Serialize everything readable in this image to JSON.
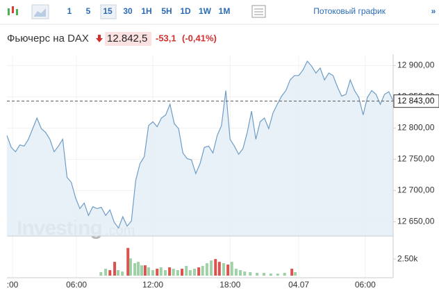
{
  "toolbar": {
    "intervals": [
      "1",
      "5",
      "15",
      "30",
      "1H",
      "5H",
      "1D",
      "1W",
      "1M"
    ],
    "selected": 2,
    "streaming": "Потоковый график",
    "more": "»"
  },
  "watermark": {
    "brand": "Investing",
    "suffix": ".com"
  },
  "chart_data": {
    "type": "line",
    "title": "Фьючерс на DAX",
    "price": "12.842,5",
    "change": "-53,1",
    "change_percent": "(-0,41%)",
    "color": "#6f9cc6",
    "fill": "#e4eef6",
    "x": [
      0,
      1,
      2,
      3,
      4,
      5,
      6,
      7,
      8,
      9,
      10,
      11,
      12,
      13,
      14,
      15,
      16,
      17,
      18,
      19,
      20,
      21,
      22,
      23,
      24,
      25,
      26,
      27,
      28,
      29,
      30,
      31,
      32,
      33,
      34,
      35,
      36,
      37,
      38,
      39,
      40,
      41,
      42,
      43,
      44,
      45,
      46,
      47,
      48,
      49,
      50,
      51,
      52,
      53,
      54,
      55,
      56,
      57,
      58,
      59,
      60,
      61,
      62,
      63,
      64,
      65,
      66,
      67,
      68,
      69,
      70,
      71,
      72,
      73,
      74,
      75,
      76,
      77,
      78,
      79,
      80,
      81,
      82,
      83,
      84,
      85,
      86,
      87,
      88,
      89,
      90
    ],
    "values": [
      12788,
      12769,
      12762,
      12773,
      12771,
      12782,
      12799,
      12816,
      12799,
      12793,
      12782,
      12762,
      12771,
      12782,
      12721,
      12713,
      12688,
      12671,
      12680,
      12660,
      12674,
      12671,
      12673,
      12660,
      12669,
      12649,
      12640,
      12658,
      12643,
      12651,
      12716,
      12743,
      12754,
      12804,
      12810,
      12802,
      12816,
      12821,
      12838,
      12807,
      12799,
      12760,
      12751,
      12749,
      12727,
      12743,
      12769,
      12771,
      12760,
      12788,
      12804,
      12860,
      12782,
      12771,
      12758,
      12767,
      12793,
      12827,
      12782,
      12810,
      12816,
      12799,
      12824,
      12838,
      12851,
      12860,
      12877,
      12884,
      12884,
      12893,
      12907,
      12899,
      12888,
      12896,
      12877,
      12888,
      12884,
      12866,
      12851,
      12854,
      12877,
      12860,
      12849,
      12821,
      12849,
      12860,
      12854,
      12838,
      12854,
      12858,
      12843
    ],
    "xlim": [
      0,
      90
    ],
    "xticks": [
      {
        "value": 1.3,
        "label": ":00"
      },
      {
        "value": 16.2,
        "label": "06:00"
      },
      {
        "value": 34,
        "label": "12:00"
      },
      {
        "value": 52,
        "label": "18:00"
      },
      {
        "value": 68,
        "label": "04.07"
      },
      {
        "value": 83.5,
        "label": "06:00"
      }
    ],
    "ylim": [
      12627,
      12916
    ],
    "yticks": [
      {
        "value": 12900,
        "label": "12 900,00"
      },
      {
        "value": 12850,
        "label": "12 850,00"
      },
      {
        "value": 12800,
        "label": "12 800,00"
      },
      {
        "value": 12750,
        "label": "12 750,00"
      },
      {
        "value": 12700,
        "label": "12 700,00"
      },
      {
        "value": 12650,
        "label": "12 650,00"
      }
    ],
    "last_value": {
      "value": 12843,
      "label": "12 843,00"
    },
    "grid": true,
    "volume": {
      "type": "bar",
      "x": [
        21.9,
        23.0,
        24.0,
        25.1,
        25.9,
        26.9,
        28.2,
        28.8,
        29.8,
        30.6,
        31.4,
        32.2,
        33.0,
        34.0,
        35.0,
        35.9,
        36.9,
        37.9,
        38.8,
        39.8,
        40.8,
        41.8,
        42.7,
        43.7,
        44.7,
        45.6,
        46.6,
        47.6,
        48.6,
        49.5,
        50.5,
        51.5,
        52.4,
        53.4,
        54.4,
        55.4,
        56.7,
        58.3,
        59.9,
        61.5,
        63.1,
        64.7,
        66.4,
        67.2
      ],
      "values": [
        520,
        1040,
        830,
        2080,
        830,
        620,
        4170,
        2600,
        1880,
        2080,
        1560,
        1560,
        1250,
        830,
        1040,
        1250,
        830,
        1250,
        1040,
        830,
        1040,
        1460,
        830,
        1040,
        1250,
        1460,
        1880,
        2290,
        2500,
        2080,
        1880,
        1670,
        2080,
        1040,
        830,
        620,
        520,
        420,
        420,
        310,
        310,
        420,
        1040,
        520
      ],
      "colors": [
        "#9ed1a6",
        "#9ed1a6",
        "#d9534f",
        "#d9534f",
        "#9ed1a6",
        "#9ed1a6",
        "#d9534f",
        "#9ed1a6",
        "#9ed1a6",
        "#9ed1a6",
        "#9ed1a6",
        "#d9534f",
        "#9ed1a6",
        "#9ed1a6",
        "#d9534f",
        "#9ed1a6",
        "#9ed1a6",
        "#d9534f",
        "#9ed1a6",
        "#9ed1a6",
        "#d9534f",
        "#9ed1a6",
        "#9ed1a6",
        "#9ed1a6",
        "#d9534f",
        "#9ed1a6",
        "#9ed1a6",
        "#9ed1a6",
        "#d9534f",
        "#d9534f",
        "#9ed1a6",
        "#d9534f",
        "#9ed1a6",
        "#9ed1a6",
        "#9ed1a6",
        "#9ed1a6",
        "#9ed1a6",
        "#9ed1a6",
        "#9ed1a6",
        "#9ed1a6",
        "#9ed1a6",
        "#9ed1a6",
        "#d9534f",
        "#9ed1a6"
      ],
      "ylim": [
        0,
        4500
      ],
      "yticks": [
        {
          "value": 2500,
          "label": "2.50k"
        }
      ]
    }
  }
}
